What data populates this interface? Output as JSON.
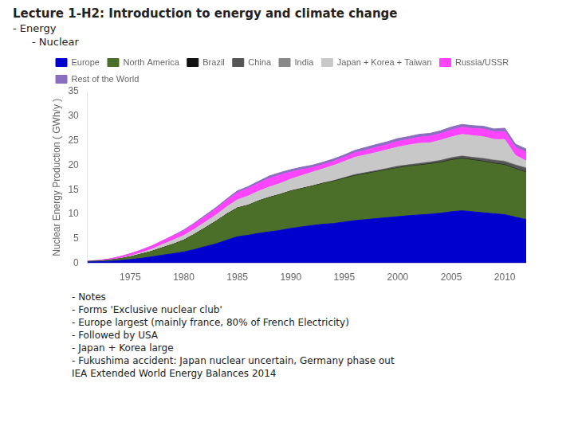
{
  "chart_data": {
    "type": "area",
    "stacked": true,
    "title": "Lecture 1-H2: Introduction to energy and climate change",
    "subtitle": [
      "- Energy",
      "- Nuclear"
    ],
    "annotations": [
      "- Notes",
      "- Forms 'Exclusive nuclear club'",
      "- Europe largest (mainly france, 80% of French Electricity)",
      "- Followed by USA",
      "- Japan + Korea large",
      "- Fukushima accident: Japan nuclear uncertain, Germany phase out",
      "IEA Extended World Energy Balances 2014"
    ],
    "y_label": "Nuclear Energy Production ( GWh/y )",
    "x": [
      1971,
      1972,
      1973,
      1974,
      1975,
      1976,
      1977,
      1978,
      1979,
      1980,
      1981,
      1982,
      1983,
      1984,
      1985,
      1986,
      1987,
      1988,
      1989,
      1990,
      1991,
      1992,
      1993,
      1994,
      1995,
      1996,
      1997,
      1998,
      1999,
      2000,
      2001,
      2002,
      2003,
      2004,
      2005,
      2006,
      2007,
      2008,
      2009,
      2010,
      2011,
      2012
    ],
    "series": [
      {
        "name": "Europe",
        "color": "#0000CC",
        "values": [
          0.25,
          0.3,
          0.4,
          0.55,
          0.75,
          1.0,
          1.3,
          1.65,
          1.95,
          2.3,
          2.8,
          3.4,
          3.95,
          4.7,
          5.4,
          5.7,
          6.1,
          6.4,
          6.7,
          7.1,
          7.4,
          7.7,
          7.95,
          8.1,
          8.4,
          8.7,
          8.9,
          9.1,
          9.3,
          9.5,
          9.7,
          9.85,
          10.0,
          10.2,
          10.5,
          10.7,
          10.5,
          10.3,
          10.1,
          9.9,
          9.4,
          8.9
        ]
      },
      {
        "name": "North America",
        "color": "#4B6E28",
        "values": [
          0.1,
          0.12,
          0.2,
          0.35,
          0.55,
          0.85,
          1.1,
          1.5,
          1.9,
          2.4,
          3.1,
          3.8,
          4.6,
          5.3,
          5.85,
          6.1,
          6.6,
          7.0,
          7.3,
          7.6,
          7.8,
          8.0,
          8.3,
          8.6,
          8.85,
          9.1,
          9.3,
          9.5,
          9.7,
          9.9,
          10.0,
          10.1,
          10.2,
          10.3,
          10.5,
          10.6,
          10.5,
          10.4,
          10.2,
          10.1,
          9.8,
          9.6
        ]
      },
      {
        "name": "Brazil",
        "color": "#111111",
        "values": [
          0.0,
          0.0,
          0.0,
          0.0,
          0.0,
          0.0,
          0.0,
          0.0,
          0.0,
          0.0,
          0.0,
          0.0,
          0.0,
          0.0,
          0.0,
          0.0,
          0.0,
          0.02,
          0.02,
          0.02,
          0.02,
          0.02,
          0.02,
          0.02,
          0.05,
          0.05,
          0.05,
          0.05,
          0.05,
          0.05,
          0.05,
          0.05,
          0.08,
          0.08,
          0.08,
          0.08,
          0.08,
          0.08,
          0.08,
          0.08,
          0.08,
          0.08
        ]
      },
      {
        "name": "China",
        "color": "#555555",
        "values": [
          0.0,
          0.0,
          0.0,
          0.0,
          0.0,
          0.0,
          0.0,
          0.0,
          0.0,
          0.0,
          0.0,
          0.0,
          0.0,
          0.0,
          0.0,
          0.0,
          0.0,
          0.0,
          0.0,
          0.0,
          0.0,
          0.0,
          0.04,
          0.08,
          0.12,
          0.18,
          0.18,
          0.18,
          0.22,
          0.26,
          0.26,
          0.28,
          0.28,
          0.32,
          0.36,
          0.4,
          0.44,
          0.5,
          0.55,
          0.6,
          0.65,
          0.75
        ]
      },
      {
        "name": "India",
        "color": "#888888",
        "values": [
          0.0,
          0.0,
          0.0,
          0.0,
          0.0,
          0.0,
          0.02,
          0.02,
          0.02,
          0.02,
          0.02,
          0.02,
          0.02,
          0.02,
          0.02,
          0.04,
          0.04,
          0.04,
          0.04,
          0.04,
          0.04,
          0.04,
          0.04,
          0.04,
          0.04,
          0.06,
          0.06,
          0.06,
          0.06,
          0.08,
          0.08,
          0.08,
          0.08,
          0.08,
          0.1,
          0.1,
          0.1,
          0.12,
          0.12,
          0.13,
          0.13,
          0.13
        ]
      },
      {
        "name": "Japan + Korea + Taiwan",
        "color": "#C8C8C8",
        "values": [
          0.0,
          0.0,
          0.0,
          0.08,
          0.18,
          0.28,
          0.45,
          0.65,
          0.85,
          0.95,
          1.05,
          1.15,
          1.25,
          1.45,
          1.65,
          1.85,
          1.95,
          2.1,
          2.2,
          2.4,
          2.6,
          2.8,
          2.9,
          3.1,
          3.3,
          3.5,
          3.6,
          3.7,
          3.8,
          3.9,
          4.0,
          4.1,
          3.9,
          4.1,
          4.2,
          4.4,
          4.4,
          4.4,
          4.2,
          4.4,
          1.9,
          1.4
        ]
      },
      {
        "name": "Russia/USSR",
        "color": "#FF44FF",
        "values": [
          0.08,
          0.16,
          0.25,
          0.35,
          0.45,
          0.55,
          0.65,
          0.75,
          0.85,
          0.95,
          1.05,
          1.15,
          1.25,
          1.35,
          1.45,
          1.55,
          1.65,
          1.75,
          1.75,
          1.45,
          1.25,
          0.95,
          0.85,
          0.85,
          0.85,
          0.95,
          0.95,
          1.05,
          1.05,
          1.15,
          1.15,
          1.25,
          1.35,
          1.35,
          1.45,
          1.45,
          1.45,
          1.55,
          1.55,
          1.65,
          1.65,
          1.75
        ]
      },
      {
        "name": "Rest of the World",
        "color": "#8A6FBF",
        "values": [
          0.0,
          0.0,
          0.0,
          0.0,
          0.0,
          0.0,
          0.0,
          0.0,
          0.08,
          0.18,
          0.18,
          0.28,
          0.28,
          0.28,
          0.38,
          0.38,
          0.38,
          0.48,
          0.48,
          0.48,
          0.48,
          0.48,
          0.48,
          0.48,
          0.48,
          0.48,
          0.58,
          0.58,
          0.58,
          0.58,
          0.58,
          0.58,
          0.58,
          0.58,
          0.58,
          0.58,
          0.58,
          0.58,
          0.58,
          0.68,
          0.68,
          0.68
        ]
      }
    ],
    "xlim": [
      1971,
      2012
    ],
    "xticks": [
      1975,
      1980,
      1985,
      1990,
      1995,
      2000,
      2005,
      2010
    ],
    "ylim": [
      0,
      35
    ],
    "yticks": [
      0,
      5,
      10,
      15,
      20,
      25,
      30,
      35
    ],
    "grid": false,
    "legend": "upper left"
  }
}
